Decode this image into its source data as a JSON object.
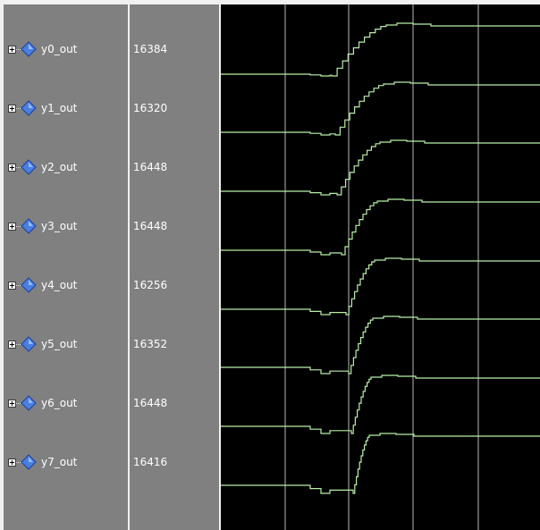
{
  "signals": [
    {
      "name": "y0_out",
      "value": "16384"
    },
    {
      "name": "y1_out",
      "value": "16320"
    },
    {
      "name": "y2_out",
      "value": "16448"
    },
    {
      "name": "y3_out",
      "value": "16448"
    },
    {
      "name": "y4_out",
      "value": "16256"
    },
    {
      "name": "y5_out",
      "value": "16352"
    },
    {
      "name": "y6_out",
      "value": "16448"
    },
    {
      "name": "y7_out",
      "value": "16416"
    }
  ],
  "colors": {
    "pane_bg": "#808080",
    "wave_bg": "#000000",
    "grid": "#b8b8b8",
    "trace": "#b8f0a8",
    "bus_icon": "#4a7fe0"
  },
  "icons": {
    "expander": "plus-box-icon",
    "bus": "blue-diamond-icon"
  }
}
